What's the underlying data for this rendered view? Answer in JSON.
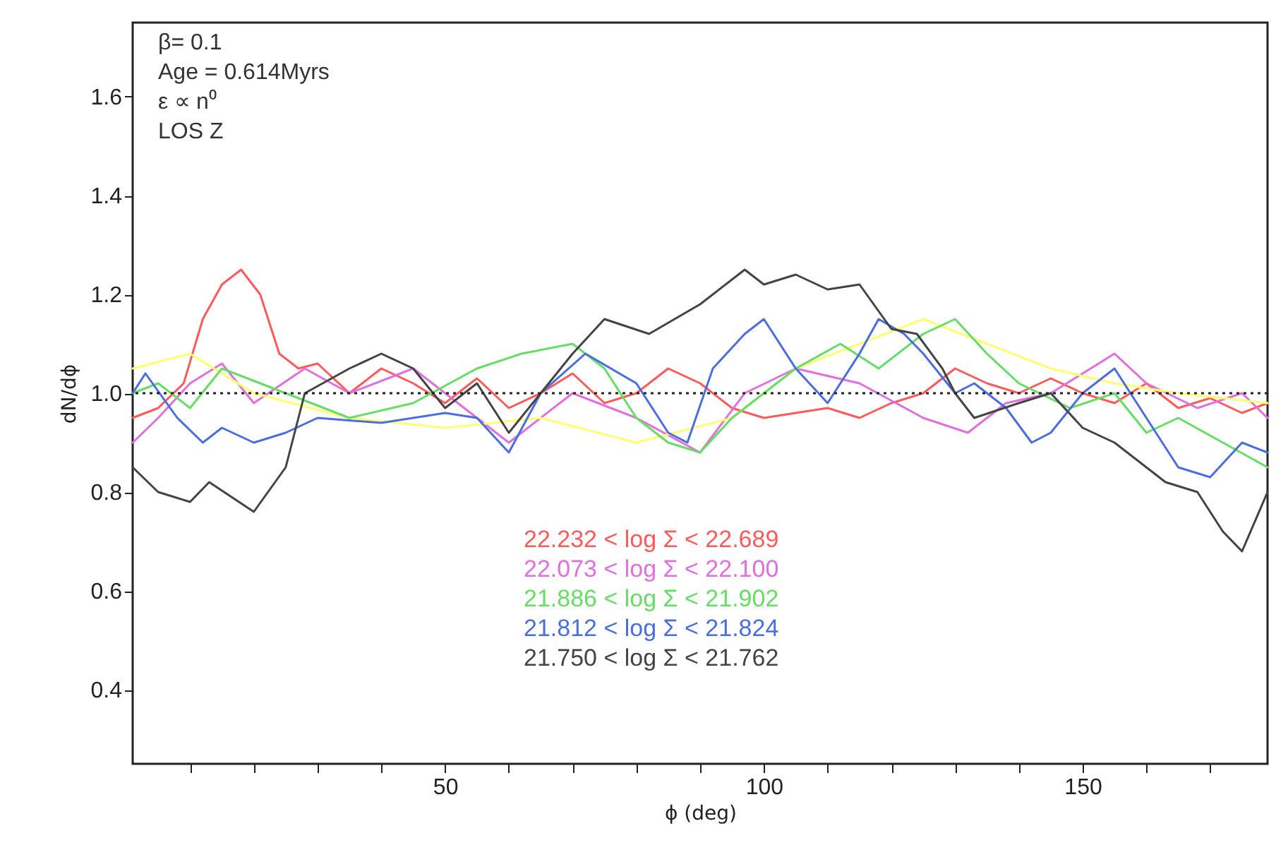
{
  "chart_data": {
    "type": "line",
    "xlabel": "ϕ (deg)",
    "ylabel": "dN/dϕ",
    "annotations": [
      "β= 0.1",
      "Age = 0.614Myrs",
      "ε ∝ n⁰",
      "LOS Z"
    ],
    "xlim": [
      1,
      179
    ],
    "ylim": [
      0.25,
      1.75
    ],
    "xticks": [
      {
        "value": 10,
        "label": null
      },
      {
        "value": 20,
        "label": null
      },
      {
        "value": 30,
        "label": null
      },
      {
        "value": 40,
        "label": null
      },
      50,
      {
        "value": 60,
        "label": null
      },
      {
        "value": 70,
        "label": null
      },
      {
        "value": 80,
        "label": null
      },
      {
        "value": 90,
        "label": null
      },
      100,
      {
        "value": 110,
        "label": null
      },
      {
        "value": 120,
        "label": null
      },
      {
        "value": 130,
        "label": null
      },
      {
        "value": 140,
        "label": null
      },
      150,
      {
        "value": 160,
        "label": null
      },
      {
        "value": 170,
        "label": null
      }
    ],
    "yticks": [
      0.4,
      0.6,
      0.8,
      {
        "value": 1,
        "label": "1.0"
      },
      1.2,
      1.4,
      1.6
    ],
    "grid": false,
    "legend": "bottom",
    "marker": "none",
    "line_style": "solid",
    "ref_lines": [
      {
        "axis": "y",
        "value": 1,
        "color": "#222222",
        "line_style": "dotted"
      }
    ],
    "series": [
      {
        "name": "22.232 < log Σ < 22.689",
        "color": "#ff5a5a",
        "x": [
          1,
          5,
          9,
          12,
          15,
          18,
          21,
          24,
          27,
          30,
          35,
          40,
          45,
          50,
          55,
          60,
          65,
          70,
          75,
          80,
          85,
          90,
          95,
          100,
          105,
          110,
          115,
          120,
          125,
          130,
          135,
          140,
          145,
          150,
          155,
          160,
          165,
          170,
          175,
          179
        ],
        "values": [
          0.95,
          0.97,
          1.02,
          1.15,
          1.22,
          1.25,
          1.2,
          1.08,
          1.05,
          1.06,
          1.0,
          1.05,
          1.02,
          0.98,
          1.03,
          0.97,
          1.0,
          1.04,
          0.98,
          1.0,
          1.05,
          1.02,
          0.97,
          0.95,
          0.96,
          0.97,
          0.95,
          0.98,
          1.0,
          1.05,
          1.02,
          1.0,
          1.03,
          1.0,
          0.98,
          1.02,
          0.97,
          0.99,
          0.96,
          0.98
        ]
      },
      {
        "name": "22.073 < log Σ < 22.100",
        "color": "#e070e0",
        "x": [
          1,
          5,
          10,
          15,
          20,
          28,
          35,
          45,
          55,
          60,
          70,
          80,
          90,
          97,
          105,
          115,
          125,
          132,
          138,
          145,
          155,
          160,
          168,
          175,
          179
        ],
        "values": [
          0.9,
          0.95,
          1.02,
          1.06,
          0.98,
          1.05,
          1.0,
          1.05,
          0.95,
          0.9,
          1.0,
          0.95,
          0.88,
          1.0,
          1.05,
          1.02,
          0.95,
          0.92,
          0.98,
          1.0,
          1.08,
          1.02,
          0.97,
          1.0,
          0.95
        ]
      },
      {
        "color": "#ffff70",
        "x": [
          1,
          10,
          20,
          35,
          50,
          65,
          80,
          95,
          105,
          115,
          125,
          135,
          145,
          155,
          165,
          179
        ],
        "values": [
          1.05,
          1.08,
          1.0,
          0.95,
          0.93,
          0.95,
          0.9,
          0.95,
          1.05,
          1.1,
          1.15,
          1.1,
          1.05,
          1.02,
          1.0,
          0.98
        ]
      },
      {
        "name": "21.886 < log Σ < 21.902",
        "color": "#66dd66",
        "x": [
          1,
          5,
          10,
          15,
          25,
          35,
          45,
          55,
          62,
          70,
          75,
          80,
          85,
          90,
          95,
          105,
          112,
          118,
          125,
          130,
          135,
          140,
          148,
          155,
          160,
          165,
          172,
          179
        ],
        "values": [
          1.0,
          1.02,
          0.97,
          1.05,
          1.0,
          0.95,
          0.98,
          1.05,
          1.08,
          1.1,
          1.05,
          0.95,
          0.9,
          0.88,
          0.95,
          1.05,
          1.1,
          1.05,
          1.12,
          1.15,
          1.08,
          1.02,
          0.97,
          1.0,
          0.92,
          0.95,
          0.9,
          0.85
        ]
      },
      {
        "name": "21.812 < log Σ < 21.824",
        "color": "#4a6ee0",
        "x": [
          1,
          3,
          8,
          12,
          15,
          20,
          25,
          30,
          40,
          50,
          55,
          60,
          65,
          72,
          80,
          85,
          88,
          92,
          97,
          100,
          105,
          110,
          115,
          118,
          122,
          125,
          130,
          133,
          138,
          142,
          145,
          150,
          155,
          160,
          165,
          170,
          175,
          179
        ],
        "values": [
          1.0,
          1.04,
          0.95,
          0.9,
          0.93,
          0.9,
          0.92,
          0.95,
          0.94,
          0.96,
          0.95,
          0.88,
          1.0,
          1.08,
          1.02,
          0.92,
          0.9,
          1.05,
          1.12,
          1.15,
          1.05,
          0.98,
          1.08,
          1.15,
          1.12,
          1.08,
          1.0,
          1.02,
          0.97,
          0.9,
          0.92,
          1.0,
          1.05,
          0.95,
          0.85,
          0.83,
          0.9,
          0.88
        ]
      },
      {
        "name": "21.750 < log Σ < 21.762",
        "color": "#444444",
        "x": [
          1,
          5,
          10,
          13,
          20,
          25,
          28,
          35,
          40,
          45,
          50,
          55,
          60,
          65,
          70,
          75,
          82,
          90,
          97,
          100,
          105,
          110,
          115,
          120,
          124,
          128,
          130,
          133,
          140,
          145,
          150,
          155,
          160,
          163,
          168,
          172,
          175,
          179
        ],
        "values": [
          0.85,
          0.8,
          0.78,
          0.82,
          0.76,
          0.85,
          1.0,
          1.05,
          1.08,
          1.05,
          0.97,
          1.02,
          0.92,
          1.0,
          1.08,
          1.15,
          1.12,
          1.18,
          1.25,
          1.22,
          1.24,
          1.21,
          1.22,
          1.13,
          1.12,
          1.05,
          1.0,
          0.95,
          0.98,
          1.0,
          0.93,
          0.9,
          0.85,
          0.82,
          0.8,
          0.72,
          0.68,
          0.8
        ]
      }
    ]
  }
}
